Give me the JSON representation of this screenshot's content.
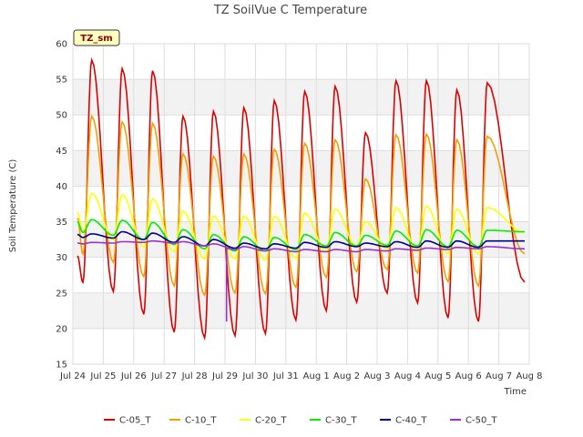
{
  "chart_data": {
    "type": "line",
    "title": "TZ SoilVue C Temperature",
    "badge": "TZ_sm",
    "xlabel": "Time",
    "ylabel": "Soil Temperature (C)",
    "ylim": [
      15,
      60
    ],
    "yticks": [
      15,
      20,
      25,
      30,
      35,
      40,
      45,
      50,
      55,
      60
    ],
    "xlim": [
      0,
      15
    ],
    "xticks": [
      {
        "day": 0,
        "label": "Jul 24"
      },
      {
        "day": 1,
        "label": "Jul 25"
      },
      {
        "day": 2,
        "label": "Jul 26"
      },
      {
        "day": 3,
        "label": "Jul 27"
      },
      {
        "day": 4,
        "label": "Jul 28"
      },
      {
        "day": 5,
        "label": "Jul 29"
      },
      {
        "day": 6,
        "label": "Jul 30"
      },
      {
        "day": 7,
        "label": "Jul 31"
      },
      {
        "day": 8,
        "label": "Aug 1"
      },
      {
        "day": 9,
        "label": "Aug 2"
      },
      {
        "day": 10,
        "label": "Aug 3"
      },
      {
        "day": 11,
        "label": "Aug 4"
      },
      {
        "day": 12,
        "label": "Aug 5"
      },
      {
        "day": 13,
        "label": "Aug 6"
      },
      {
        "day": 14,
        "label": "Aug 7"
      },
      {
        "day": 15,
        "label": "Aug 8"
      }
    ],
    "grid": true,
    "legend_position": "bottom",
    "series": [
      {
        "name": "C-05_T",
        "color": "#dd0000",
        "start_day": 0.15,
        "end_day": 14.85,
        "start_value": 30.2,
        "end_value": 26.5,
        "peaks": [
          57.7,
          56.5,
          56.2,
          49.8,
          50.5,
          51.0,
          52.0,
          53.3,
          54.0,
          47.5,
          54.8,
          54.8,
          53.5,
          54.5
        ],
        "troughs": [
          26.5,
          25.2,
          22.0,
          19.5,
          18.7,
          19.0,
          19.3,
          21.2,
          22.5,
          23.7,
          25.0,
          23.6,
          21.5,
          21.0
        ]
      },
      {
        "name": "C-10_T",
        "color": "#f0a000",
        "start_day": 0.15,
        "end_day": 14.85,
        "start_value": 35.5,
        "end_value": 30.5,
        "peaks": [
          49.8,
          49.0,
          48.8,
          44.5,
          44.2,
          44.5,
          45.2,
          46.0,
          46.5,
          41.0,
          47.2,
          47.3,
          46.5,
          47.0
        ],
        "troughs": [
          30.5,
          29.3,
          27.3,
          26.0,
          24.7,
          25.0,
          24.9,
          25.8,
          27.2,
          28.0,
          28.3,
          27.8,
          26.6,
          26.0
        ]
      },
      {
        "name": "C-20_T",
        "color": "#ffff00",
        "start_day": 0.15,
        "end_day": 14.85,
        "start_value": 36.3,
        "end_value": 33.5,
        "peaks": [
          39.0,
          38.8,
          38.2,
          36.5,
          35.8,
          35.8,
          35.8,
          36.2,
          36.8,
          35.0,
          37.0,
          37.2,
          36.8,
          37.0
        ],
        "troughs": [
          33.5,
          32.5,
          31.5,
          30.8,
          29.8,
          29.8,
          29.6,
          29.9,
          30.8,
          31.5,
          31.2,
          30.8,
          30.5,
          30.5
        ]
      },
      {
        "name": "C-30_T",
        "color": "#00ee00",
        "start_day": 0.15,
        "end_day": 14.85,
        "start_value": 35.0,
        "end_value": 33.6,
        "peaks": [
          35.3,
          35.2,
          34.9,
          33.9,
          33.2,
          32.9,
          32.8,
          33.2,
          33.5,
          33.1,
          33.7,
          33.9,
          33.8,
          33.8
        ],
        "troughs": [
          33.5,
          33.1,
          32.5,
          31.8,
          31.2,
          30.9,
          30.9,
          31.1,
          31.6,
          31.6,
          31.7,
          31.6,
          31.5,
          31.5
        ]
      },
      {
        "name": "C-40_T",
        "color": "#00008b",
        "start_day": 0.15,
        "end_day": 14.85,
        "start_value": 33.2,
        "end_value": 32.3,
        "peaks": [
          33.3,
          33.6,
          33.4,
          32.9,
          32.5,
          32.0,
          31.9,
          32.1,
          32.2,
          32.0,
          32.2,
          32.3,
          32.3,
          32.3
        ],
        "troughs": [
          32.8,
          32.7,
          32.5,
          32.1,
          31.6,
          31.3,
          31.2,
          31.3,
          31.4,
          31.5,
          31.5,
          31.4,
          31.4,
          31.4
        ]
      },
      {
        "name": "C-50_T",
        "color": "#9932cc",
        "start_day": 0.15,
        "end_day": 14.85,
        "start_value": 32.0,
        "end_value": 31.2,
        "peaks": [
          32.1,
          32.2,
          32.3,
          32.2,
          31.9,
          31.5,
          31.2,
          31.1,
          31.1,
          31.1,
          31.2,
          31.3,
          31.4,
          31.5
        ],
        "troughs": [
          31.9,
          32.0,
          32.1,
          32.0,
          31.6,
          31.1,
          30.9,
          30.8,
          30.8,
          30.8,
          30.9,
          31.0,
          31.1,
          31.2
        ],
        "glitch": {
          "day": 5.05,
          "value": 21.0
        }
      }
    ]
  }
}
